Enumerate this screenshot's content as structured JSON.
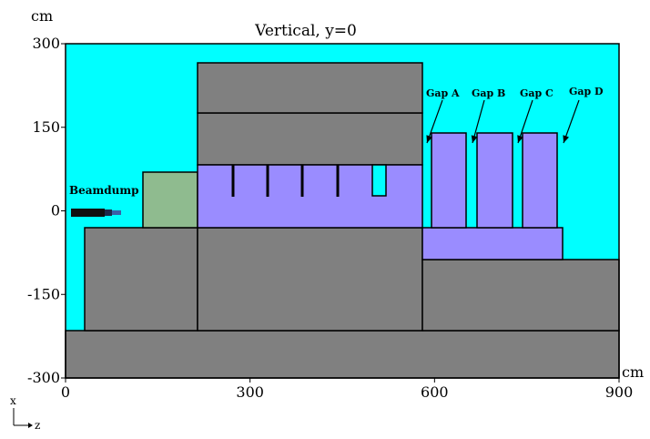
{
  "title": "Vertical, y=0",
  "units": {
    "top": "cm",
    "right": "cm"
  },
  "axes": {
    "h_label": "z",
    "v_label": "x",
    "x_ticks": [
      {
        "value": 0,
        "label": "0"
      },
      {
        "value": 300,
        "label": "300"
      },
      {
        "value": 600,
        "label": "600"
      },
      {
        "value": 900,
        "label": "900"
      }
    ],
    "y_ticks": [
      {
        "value": 300,
        "label": "300"
      },
      {
        "value": 150,
        "label": "150"
      },
      {
        "value": 0,
        "label": "0"
      },
      {
        "value": -150,
        "label": "-150"
      },
      {
        "value": -300,
        "label": "-300"
      }
    ],
    "x_range": [
      0,
      900
    ],
    "y_range": [
      -300,
      300
    ]
  },
  "colors": {
    "air": "#00ffff",
    "concrete": "#808080",
    "iron": "#9a8cff",
    "soil": "#8fbb8f",
    "beamdump": "#101010",
    "beamdump_tip": "#3b5fa8"
  },
  "labels": {
    "beamdump": "Beamdump",
    "gaps": [
      "Gap A",
      "Gap B",
      "Gap C",
      "Gap D"
    ]
  }
}
